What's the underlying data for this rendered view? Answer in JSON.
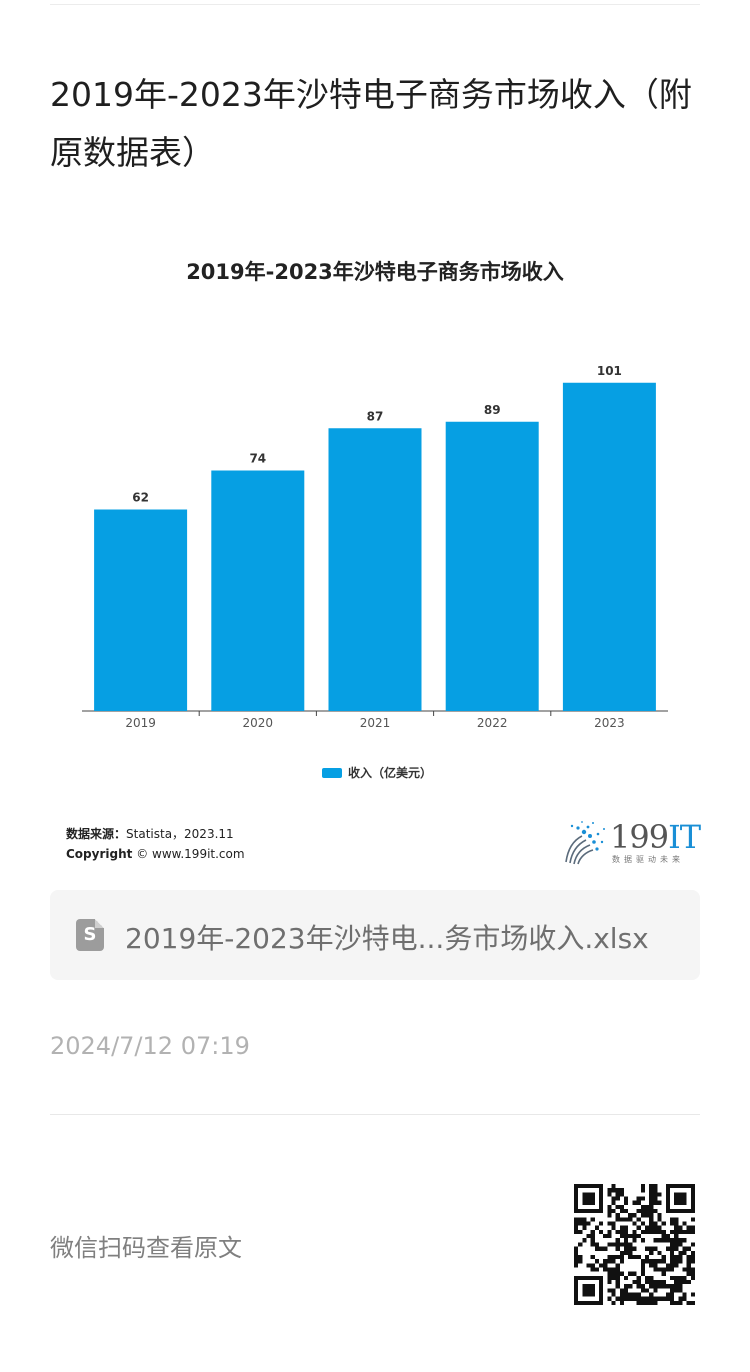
{
  "article": {
    "title": "2019年-2023年沙特电子商务市场收入（附原数据表）"
  },
  "chart_data": {
    "type": "bar",
    "title": "2019年-2023年沙特电子商务市场收入",
    "categories": [
      "2019",
      "2020",
      "2021",
      "2022",
      "2023"
    ],
    "series": [
      {
        "name": "收入（亿美元）",
        "values": [
          62,
          74,
          87,
          89,
          101
        ],
        "color": "#069fe3"
      }
    ],
    "ylim": [
      0,
      120
    ],
    "grid": false,
    "legend": "bottom",
    "data_labels": true
  },
  "figure": {
    "source_label": "数据来源：",
    "source_value": "Statista，2023.11",
    "copyright_label": "Copyright",
    "copyright_value": "© www.199it.com",
    "brand_number": "199",
    "brand_suffix": "IT",
    "brand_tagline": "数据驱动未来"
  },
  "attachment": {
    "file_name": "2019年-2023年沙特电...务市场收入.xlsx",
    "icon": "spreadsheet-file-icon",
    "icon_glyph": "S"
  },
  "meta": {
    "timestamp": "2024/7/12 07:19"
  },
  "footer": {
    "scan_prompt": "微信扫码查看原文",
    "qr_icon": "qr-code-icon"
  }
}
